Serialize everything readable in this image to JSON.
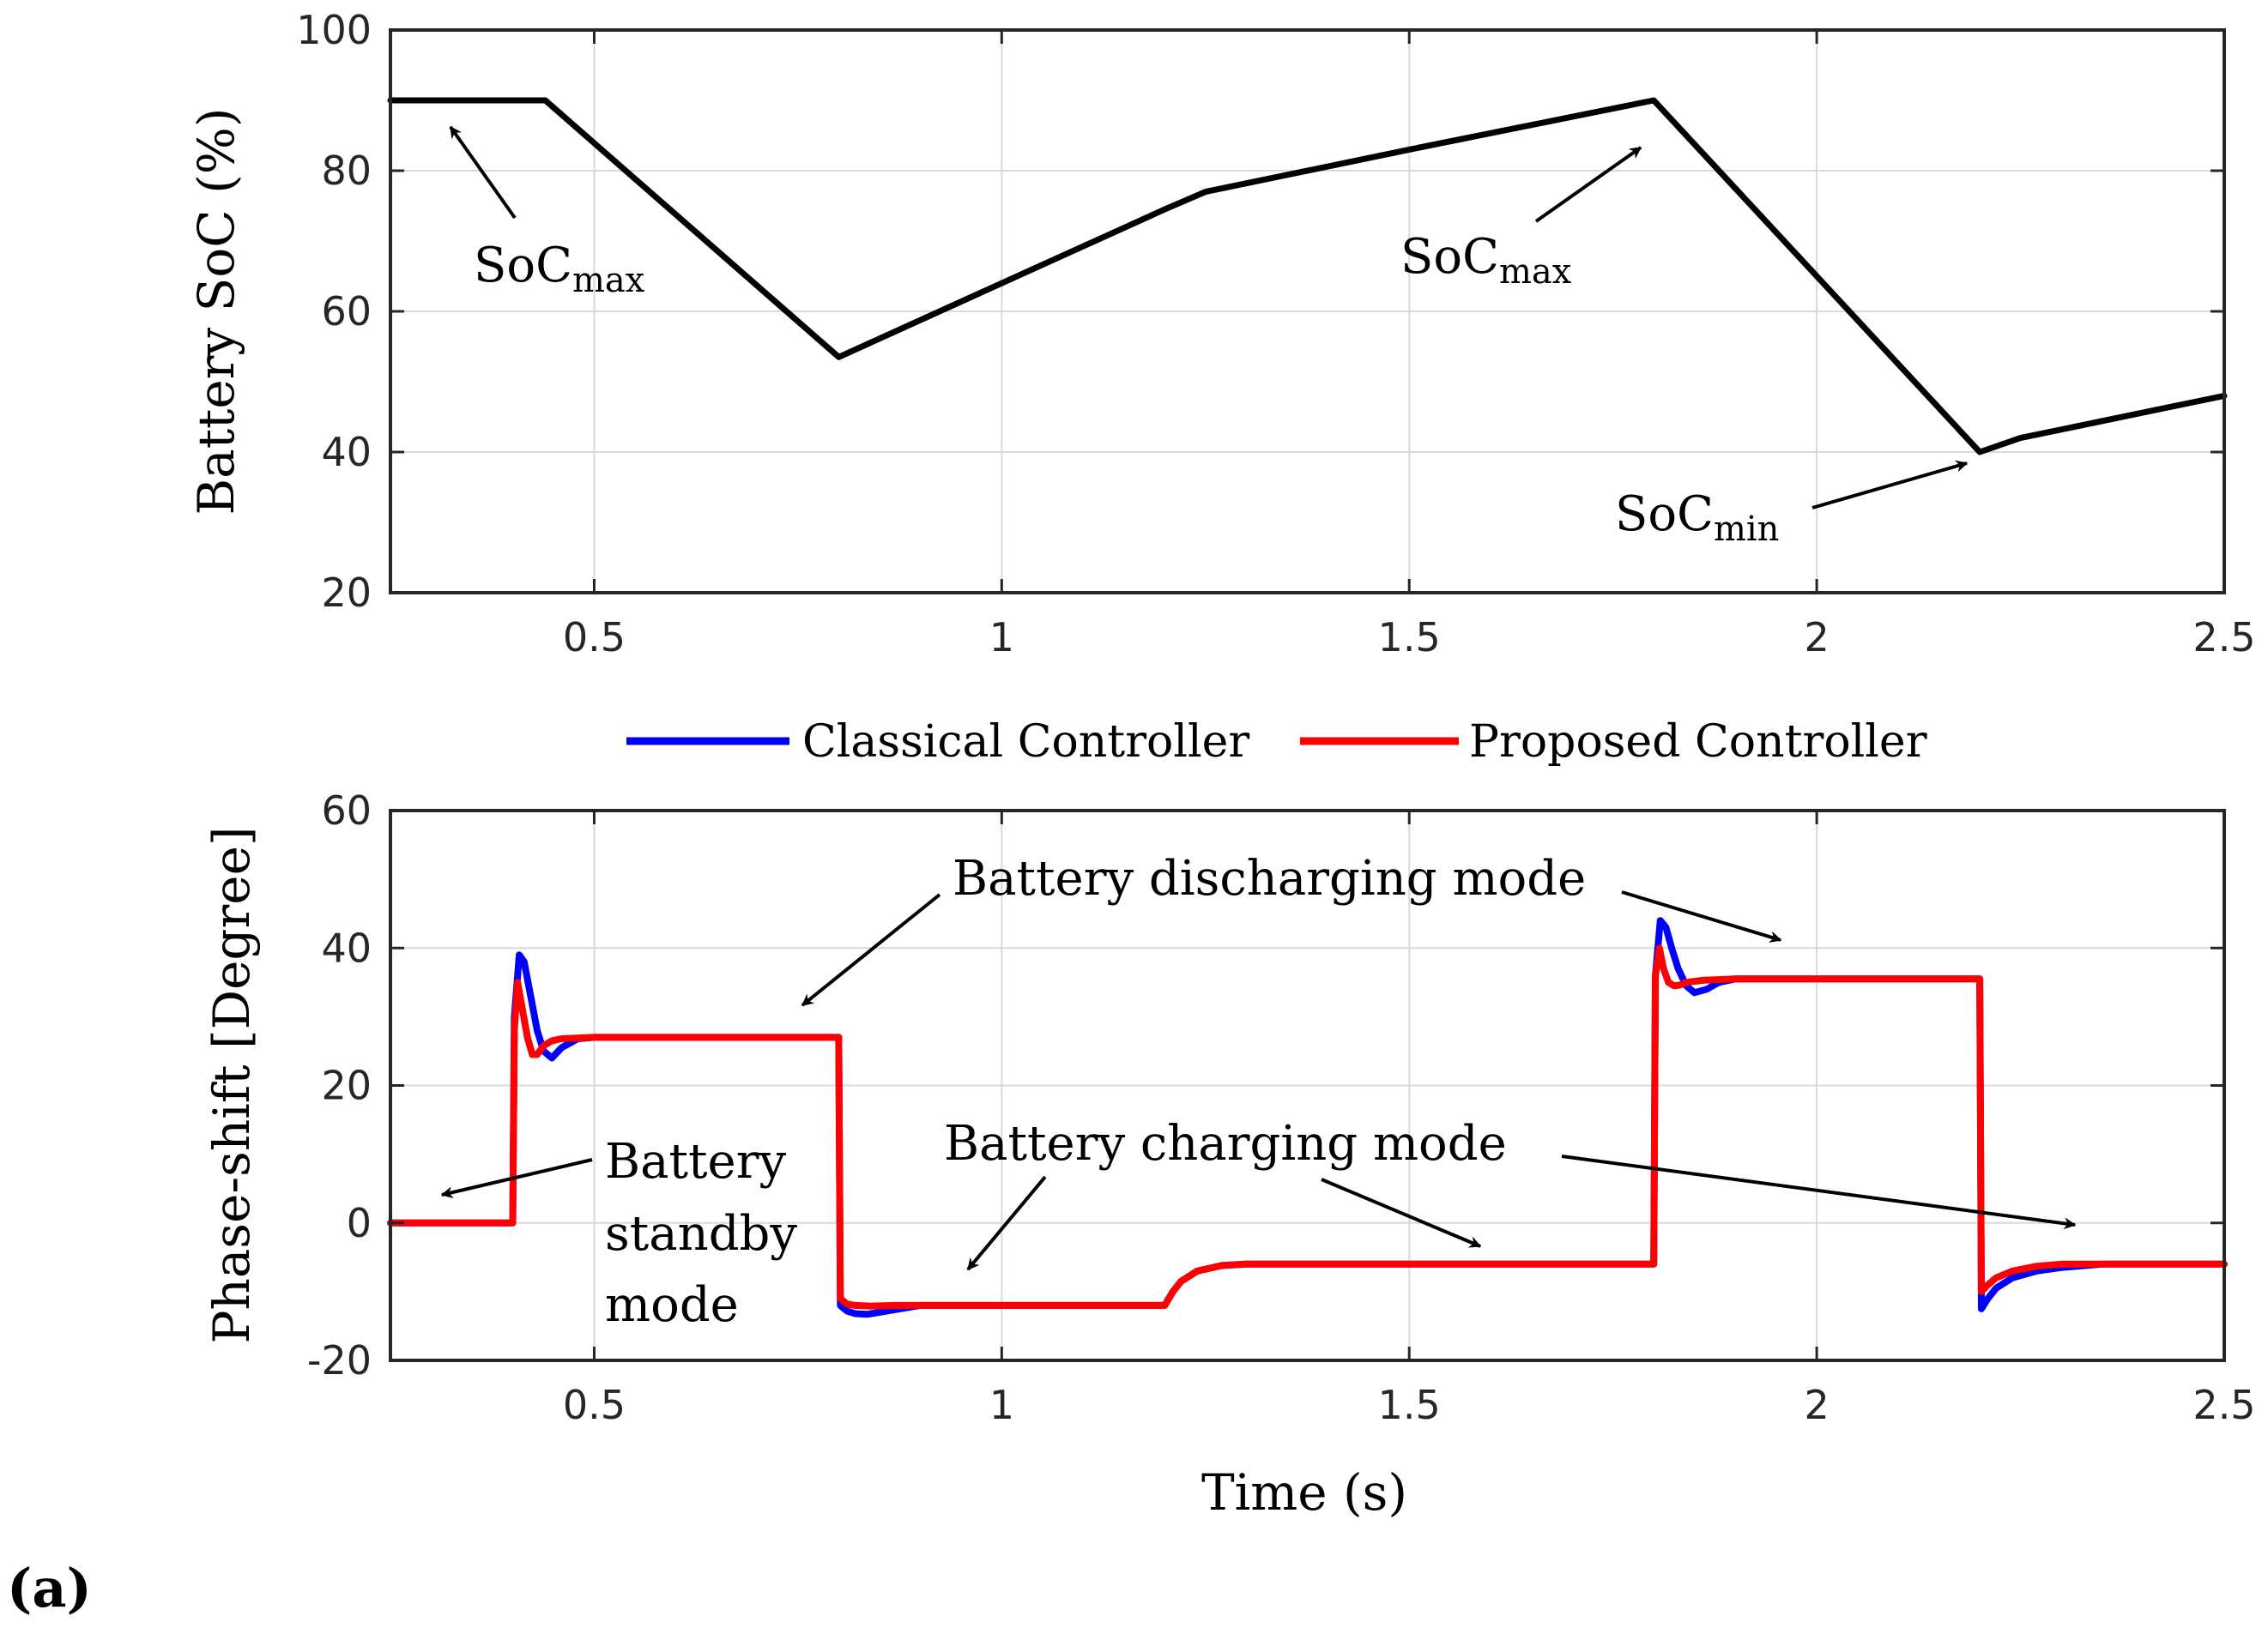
{
  "figure": {
    "panel_label": "(a)"
  },
  "colors": {
    "classical": "#0000ff",
    "proposed": "#ff0000",
    "soc": "#000000",
    "grid": "#d9d9d9"
  },
  "chart_data": [
    {
      "type": "line",
      "title": "",
      "xlabel": "",
      "ylabel": "Battery SoC (%)",
      "xlim": [
        0.25,
        2.5
      ],
      "ylim": [
        20,
        100
      ],
      "grid": true,
      "xticks": [
        0.5,
        1,
        1.5,
        2,
        2.5
      ],
      "xtick_labels": [
        "0.5",
        "1",
        "1.5",
        "2",
        "2.5"
      ],
      "yticks": [
        20,
        40,
        60,
        80,
        100
      ],
      "ytick_labels": [
        "20",
        "40",
        "60",
        "80",
        "100"
      ],
      "series": [
        {
          "color": "#000000",
          "x": [
            0.25,
            0.44,
            0.8,
            1.0,
            1.2,
            1.25,
            1.5,
            1.8,
            2.2,
            2.25,
            2.5
          ],
          "y": [
            90,
            90,
            53.5,
            64,
            74.5,
            77,
            83,
            90,
            40,
            42,
            48
          ]
        }
      ],
      "annotations": [
        {
          "label": "SoC",
          "sub": "max",
          "point": [
            0.33,
            89.5
          ]
        },
        {
          "label": "SoC",
          "sub": "max",
          "point": [
            1.77,
            86.5
          ]
        },
        {
          "label": "SoC",
          "sub": "min",
          "point": [
            2.19,
            40.5
          ]
        }
      ]
    },
    {
      "type": "line",
      "title": "",
      "xlabel": "Time (s)",
      "ylabel": "Phase-shift [Degree]",
      "xlim": [
        0.25,
        2.5
      ],
      "ylim": [
        -20,
        60
      ],
      "grid": true,
      "legend": "top-center",
      "xticks": [
        0.5,
        1,
        1.5,
        2,
        2.5
      ],
      "xtick_labels": [
        "0.5",
        "1",
        "1.5",
        "2",
        "2.5"
      ],
      "yticks": [
        -20,
        0,
        20,
        40,
        60
      ],
      "ytick_labels": [
        "-20",
        "0",
        "20",
        "40",
        "60"
      ],
      "series": [
        {
          "name": "Classical Controller",
          "color": "#0000ff",
          "x": [
            0.25,
            0.4,
            0.402,
            0.408,
            0.414,
            0.422,
            0.43,
            0.438,
            0.448,
            0.46,
            0.48,
            0.5,
            0.8,
            0.802,
            0.81,
            0.82,
            0.835,
            0.86,
            0.9,
            1.2,
            1.21,
            1.22,
            1.24,
            1.27,
            1.3,
            1.8,
            1.802,
            1.808,
            1.815,
            1.822,
            1.83,
            1.84,
            1.85,
            1.865,
            1.88,
            1.9,
            2.2,
            2.202,
            2.21,
            2.22,
            2.24,
            2.27,
            2.3,
            2.35,
            2.5
          ],
          "y": [
            0,
            0,
            30,
            39,
            38,
            33,
            28,
            25,
            24,
            25.5,
            26.8,
            27,
            27,
            -12,
            -12.8,
            -13.2,
            -13.3,
            -12.8,
            -12,
            -12,
            -10,
            -8.5,
            -7,
            -6.2,
            -6,
            -6,
            36,
            44,
            43,
            40,
            37,
            34.5,
            33.5,
            34,
            35,
            35.5,
            35.5,
            -12.5,
            -11,
            -9.5,
            -8,
            -7,
            -6.5,
            -6,
            -6
          ]
        },
        {
          "name": "Proposed Controller",
          "color": "#ff0000",
          "x": [
            0.25,
            0.4,
            0.402,
            0.406,
            0.412,
            0.418,
            0.424,
            0.43,
            0.438,
            0.448,
            0.46,
            0.5,
            0.8,
            0.802,
            0.81,
            0.82,
            0.84,
            0.87,
            0.9,
            1.2,
            1.21,
            1.22,
            1.24,
            1.27,
            1.3,
            1.8,
            1.802,
            1.807,
            1.812,
            1.818,
            1.825,
            1.832,
            1.84,
            1.86,
            1.9,
            2.2,
            2.202,
            2.21,
            2.22,
            2.24,
            2.27,
            2.3,
            2.5
          ],
          "y": [
            0,
            0,
            28,
            35,
            31,
            27,
            24.5,
            24.5,
            25.8,
            26.5,
            26.8,
            27,
            27,
            -11,
            -11.8,
            -12,
            -12.1,
            -12,
            -12,
            -12,
            -10,
            -8.5,
            -7,
            -6.2,
            -6,
            -6,
            36,
            40,
            37,
            35,
            34.5,
            34.6,
            35,
            35.3,
            35.5,
            35.5,
            -10,
            -9,
            -8,
            -7,
            -6.3,
            -6,
            -6
          ]
        }
      ],
      "annotations": [
        {
          "text": "Battery discharging mode",
          "arrows_to": [
            [
              0.7,
              30
            ],
            [
              2.0,
              40
            ]
          ]
        },
        {
          "text": "Battery charging mode",
          "arrows_to": [
            [
              0.92,
              -8
            ],
            [
              1.58,
              -3
            ],
            [
              2.31,
              -1.5
            ]
          ]
        },
        {
          "lines": [
            "Battery",
            "standby",
            "mode"
          ],
          "arrow_to": [
            0.31,
            3
          ]
        }
      ]
    }
  ]
}
